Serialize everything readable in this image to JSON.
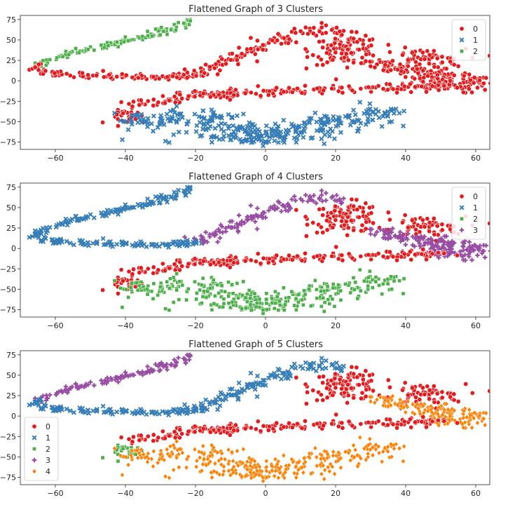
{
  "colors": {
    "0": "#e41a1c",
    "1": "#377eb8",
    "2": "#4daf4a",
    "3": "#984ea3",
    "4": "#ff7f00"
  },
  "markers": {
    "0": "circle",
    "1": "x",
    "2": "square",
    "3": "plus",
    "4": "diamond"
  },
  "chart_data": [
    {
      "type": "scatter",
      "title": "Flattened Graph of 3 Clusters",
      "xlabel": "",
      "ylabel": "",
      "xlim": [
        -70,
        64
      ],
      "ylim": [
        -84,
        80
      ],
      "xticks": [
        -60,
        -40,
        -20,
        0,
        20,
        40,
        60
      ],
      "yticks": [
        75,
        50,
        25,
        0,
        -25,
        -50,
        -75
      ],
      "legend": {
        "placement": "top-right",
        "labels": [
          "0",
          "1",
          "2"
        ]
      },
      "regions": {
        "upper_left_band": "2",
        "upper_left_inner": "0",
        "upper_middle_band": "0",
        "right_upper": "0",
        "right_mid": "0",
        "mid_red_strip": "0",
        "lower_left_edge": "0",
        "lower_blue": "1"
      }
    },
    {
      "type": "scatter",
      "title": "Flattened Graph of 4 Clusters",
      "xlabel": "",
      "ylabel": "",
      "xlim": [
        -70,
        64
      ],
      "ylim": [
        -84,
        80
      ],
      "xticks": [
        -60,
        -40,
        -20,
        0,
        20,
        40,
        60
      ],
      "yticks": [
        75,
        50,
        25,
        0,
        -25,
        -50,
        -75
      ],
      "legend": {
        "placement": "top-right",
        "labels": [
          "0",
          "1",
          "2",
          "3"
        ]
      },
      "regions": {
        "upper_left_band": "1",
        "upper_left_inner": "1",
        "upper_middle_band": "3",
        "right_upper": "0",
        "right_mid": "3",
        "mid_red_strip": "0",
        "lower_left_edge": "0",
        "lower_blue": "2"
      }
    },
    {
      "type": "scatter",
      "title": "Flattened Graph of 5 Clusters",
      "xlabel": "",
      "ylabel": "",
      "xlim": [
        -70,
        64
      ],
      "ylim": [
        -84,
        80
      ],
      "xticks": [
        -60,
        -40,
        -20,
        0,
        20,
        40,
        60
      ],
      "yticks": [
        75,
        50,
        25,
        0,
        -25,
        -50,
        -75
      ],
      "legend": {
        "placement": "bottom-left",
        "labels": [
          "0",
          "1",
          "2",
          "3",
          "4"
        ]
      },
      "regions": {
        "upper_left_band": "3",
        "upper_left_inner": "1",
        "upper_middle_band": "1",
        "right_upper": "0",
        "right_mid": "4",
        "mid_red_strip": "0",
        "lower_left_edge": "2",
        "lower_blue": "4"
      }
    }
  ]
}
